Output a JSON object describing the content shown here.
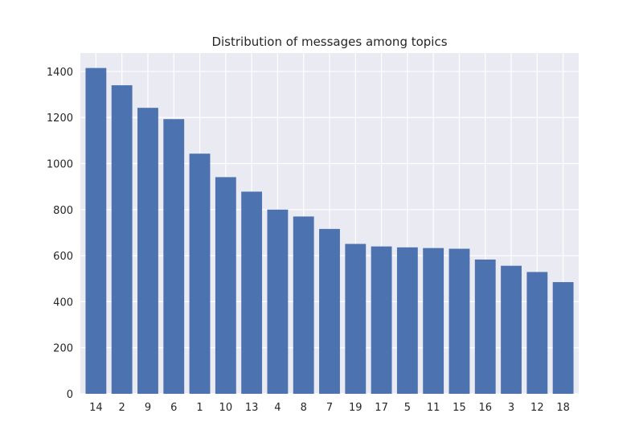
{
  "chart_data": {
    "type": "bar",
    "title": "Distribution of messages among topics",
    "xlabel": "",
    "ylabel": "",
    "categories": [
      "14",
      "2",
      "9",
      "6",
      "1",
      "10",
      "13",
      "4",
      "8",
      "7",
      "19",
      "17",
      "5",
      "11",
      "15",
      "16",
      "3",
      "12",
      "18"
    ],
    "values": [
      1415,
      1340,
      1242,
      1193,
      1043,
      941,
      878,
      800,
      770,
      716,
      651,
      640,
      636,
      633,
      630,
      583,
      556,
      529,
      485
    ],
    "ylim": [
      0,
      1480
    ],
    "yticks": [
      0,
      200,
      400,
      600,
      800,
      1000,
      1200,
      1400
    ],
    "grid": true,
    "colors": {
      "bar": "#4c72b0",
      "plot_background": "#eaeaf2",
      "grid": "#ffffff",
      "text": "#262626"
    }
  }
}
